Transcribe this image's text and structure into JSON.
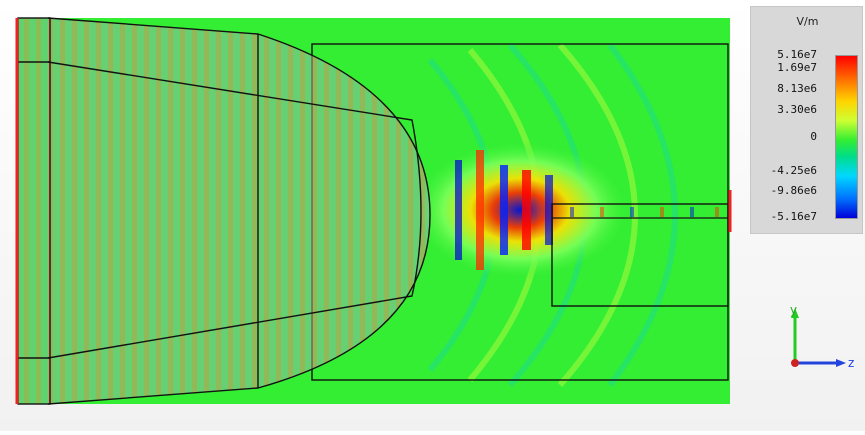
{
  "legend": {
    "unit": "V/m",
    "ticks": [
      "5.16e7",
      "1.69e7",
      "8.13e6",
      "3.30e6",
      "0",
      "-4.25e6",
      "-9.86e6",
      "-5.16e7"
    ]
  },
  "axes": {
    "y_label": "y",
    "z_label": "z"
  },
  "colors": {
    "field_background": "#2fee2f",
    "max": "#ff0000",
    "min": "#0000d8",
    "outline": "#111111",
    "port": "#ee2222"
  }
}
